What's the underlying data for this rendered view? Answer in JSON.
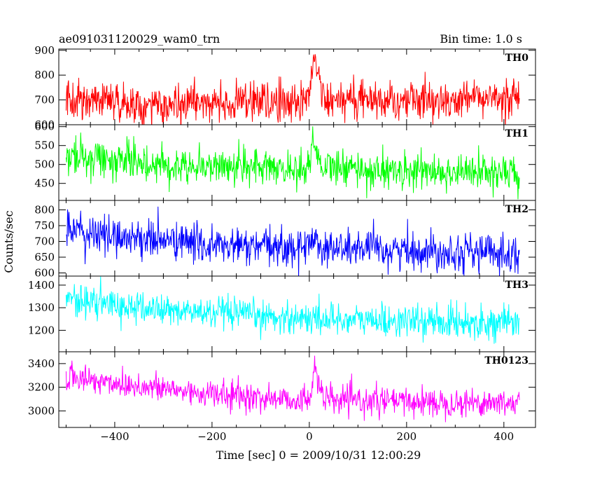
{
  "header": {
    "left_title": "ae091031120029_wam0_trn",
    "right_title": "Bin time: 1.0 s"
  },
  "chart_data": {
    "type": "line",
    "title": "ae091031120029_wam0_trn",
    "subtitle": "Bin time: 1.0 s",
    "xlabel": "Time [sec] 0 = 2009/10/31 12:00:29",
    "ylabel": "Counts/sec",
    "xlim": [
      -515,
      465
    ],
    "x_ticks": [
      -400,
      -200,
      0,
      200,
      400
    ],
    "x_range_data": [
      -500,
      432
    ],
    "bin_seconds": 1.0,
    "grid": false,
    "legend": "none",
    "burst_peak_seconds": [
      2,
      16
    ],
    "panels": [
      {
        "name": "TH0",
        "color": "#ff0000",
        "ylim": [
          600,
          905
        ],
        "y_ticks": [
          600,
          700,
          800,
          900
        ],
        "points": [
          [
            -500,
            691
          ],
          [
            -450,
            702
          ],
          [
            -400,
            693
          ],
          [
            -350,
            687
          ],
          [
            -300,
            684
          ],
          [
            -250,
            688
          ],
          [
            -200,
            688
          ],
          [
            -150,
            690
          ],
          [
            -100,
            689
          ],
          [
            -50,
            697
          ],
          [
            -10,
            700
          ],
          [
            0,
            712
          ],
          [
            5,
            810
          ],
          [
            10,
            890
          ],
          [
            15,
            840
          ],
          [
            20,
            760
          ],
          [
            30,
            700
          ],
          [
            50,
            701
          ],
          [
            100,
            701
          ],
          [
            150,
            701
          ],
          [
            200,
            698
          ],
          [
            250,
            699
          ],
          [
            300,
            700
          ],
          [
            350,
            701
          ],
          [
            400,
            703
          ],
          [
            432,
            700
          ]
        ],
        "noise_sd": 38
      },
      {
        "name": "TH1",
        "color": "#00ff00",
        "ylim": [
          405,
          605
        ],
        "y_ticks": [
          450,
          500,
          550,
          600
        ],
        "points": [
          [
            -500,
            522
          ],
          [
            -450,
            518
          ],
          [
            -400,
            512
          ],
          [
            -350,
            505
          ],
          [
            -300,
            500
          ],
          [
            -250,
            498
          ],
          [
            -200,
            497
          ],
          [
            -150,
            495
          ],
          [
            -100,
            492
          ],
          [
            -50,
            490
          ],
          [
            -10,
            487
          ],
          [
            0,
            500
          ],
          [
            5,
            540
          ],
          [
            10,
            570
          ],
          [
            15,
            548
          ],
          [
            20,
            520
          ],
          [
            30,
            490
          ],
          [
            50,
            489
          ],
          [
            100,
            486
          ],
          [
            150,
            484
          ],
          [
            200,
            482
          ],
          [
            250,
            481
          ],
          [
            300,
            480
          ],
          [
            350,
            479
          ],
          [
            400,
            478
          ],
          [
            432,
            477
          ]
        ],
        "noise_sd": 25
      },
      {
        "name": "TH2",
        "color": "#0000ff",
        "ylim": [
          590,
          830
        ],
        "y_ticks": [
          600,
          650,
          700,
          750,
          800
        ],
        "points": [
          [
            -500,
            730
          ],
          [
            -450,
            723
          ],
          [
            -400,
            717
          ],
          [
            -350,
            711
          ],
          [
            -300,
            703
          ],
          [
            -250,
            698
          ],
          [
            -200,
            686
          ],
          [
            -150,
            684
          ],
          [
            -100,
            682
          ],
          [
            -50,
            680
          ],
          [
            -10,
            680
          ],
          [
            0,
            690
          ],
          [
            5,
            705
          ],
          [
            10,
            730
          ],
          [
            15,
            705
          ],
          [
            20,
            690
          ],
          [
            30,
            679
          ],
          [
            50,
            678
          ],
          [
            100,
            676
          ],
          [
            150,
            673
          ],
          [
            200,
            671
          ],
          [
            250,
            670
          ],
          [
            300,
            669
          ],
          [
            350,
            667
          ],
          [
            400,
            665
          ],
          [
            432,
            664
          ]
        ],
        "noise_sd": 30
      },
      {
        "name": "TH3",
        "color": "#00ffff",
        "ylim": [
          1105,
          1440
        ],
        "y_ticks": [
          1200,
          1300,
          1400
        ],
        "points": [
          [
            -500,
            1340
          ],
          [
            -450,
            1325
          ],
          [
            -400,
            1310
          ],
          [
            -350,
            1298
          ],
          [
            -300,
            1290
          ],
          [
            -250,
            1282
          ],
          [
            -200,
            1275
          ],
          [
            -150,
            1268
          ],
          [
            -100,
            1262
          ],
          [
            -50,
            1257
          ],
          [
            0,
            1254
          ],
          [
            50,
            1250
          ],
          [
            100,
            1246
          ],
          [
            150,
            1242
          ],
          [
            200,
            1240
          ],
          [
            250,
            1238
          ],
          [
            300,
            1237
          ],
          [
            350,
            1235
          ],
          [
            400,
            1232
          ],
          [
            432,
            1230
          ]
        ],
        "noise_sd": 35
      },
      {
        "name": "TH0123",
        "color": "#ff00ff",
        "ylim": [
          2860,
          3500
        ],
        "y_ticks": [
          3000,
          3200,
          3400
        ],
        "points": [
          [
            -500,
            3290
          ],
          [
            -450,
            3260
          ],
          [
            -400,
            3235
          ],
          [
            -350,
            3210
          ],
          [
            -300,
            3185
          ],
          [
            -250,
            3165
          ],
          [
            -200,
            3140
          ],
          [
            -150,
            3125
          ],
          [
            -100,
            3110
          ],
          [
            -50,
            3100
          ],
          [
            -10,
            3090
          ],
          [
            -2,
            3060
          ],
          [
            0,
            3110
          ],
          [
            5,
            3220
          ],
          [
            10,
            3400
          ],
          [
            15,
            3320
          ],
          [
            20,
            3200
          ],
          [
            30,
            3100
          ],
          [
            50,
            3090
          ],
          [
            100,
            3085
          ],
          [
            150,
            3080
          ],
          [
            200,
            3078
          ],
          [
            250,
            3075
          ],
          [
            300,
            3073
          ],
          [
            350,
            3072
          ],
          [
            400,
            3070
          ],
          [
            432,
            3068
          ]
        ],
        "noise_sd": 60
      }
    ]
  }
}
